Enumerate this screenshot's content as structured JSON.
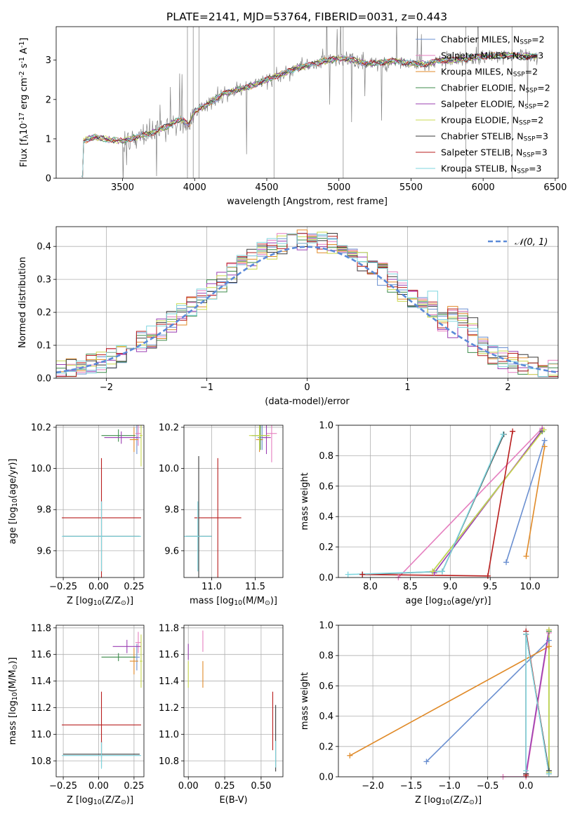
{
  "figure_title": "PLATE=2141, MJD=53764, FIBERID=0031, z=0.443",
  "colors": {
    "Chabrier MILES": "#6a8fd0",
    "Salpeter MILES": "#e57fbf",
    "Kroupa MILES": "#e08a28",
    "Chabrier ELODIE": "#3d8b4b",
    "Salpeter ELODIE": "#9b3fb2",
    "Kroupa ELODIE": "#c9d84f",
    "Chabrier STELIB": "#3a3a3a",
    "Salpeter STELIB": "#b81d1d",
    "Kroupa STELIB": "#7fd6df",
    "data": "#808080",
    "gaussian": "#5b8ad8"
  },
  "chart_data": [
    {
      "type": "line",
      "id": "spectrum",
      "title": "PLATE=2141, MJD=53764, FIBERID=0031, z=0.443",
      "xlabel": "wavelength [Angstrom, rest frame]",
      "ylabel": "Flux [f$_\\lambda$10$^{-17}$ erg cm$^{-2}$ s$^{-1}$ A$^{-1}$]",
      "xlim": [
        3040,
        6520
      ],
      "ylim": [
        0,
        3.85
      ],
      "xticks": [
        3500,
        4000,
        4500,
        5000,
        5500,
        6000,
        6500
      ],
      "yticks": [
        0,
        1,
        2,
        3
      ],
      "grid": false,
      "legend": "top-right",
      "legend_entries": [
        "Chabrier MILES, N$_{SSP}$=2",
        "Salpeter MILES, N$_{SSP}$=3",
        "Kroupa MILES, N$_{SSP}$=2",
        "Chabrier ELODIE, N$_{SSP}$=2",
        "Salpeter ELODIE, N$_{SSP}$=2",
        "Kroupa ELODIE, N$_{SSP}$=2",
        "Chabrier STELIB, N$_{SSP}$=3",
        "Salpeter STELIB, N$_{SSP}$=3",
        "Kroupa STELIB, N$_{SSP}$=3"
      ],
      "continuum": {
        "x": [
          3215,
          3230,
          3300,
          3400,
          3500,
          3600,
          3700,
          3800,
          3900,
          3960,
          4000,
          4100,
          4200,
          4300,
          4400,
          4500,
          4600,
          4700,
          4800,
          4900,
          5000,
          5100,
          5200,
          5300,
          5400,
          5500,
          5600,
          5700,
          5800,
          5900,
          6000,
          6100,
          6200,
          6300,
          6380
        ],
        "y": [
          0.05,
          0.95,
          1.05,
          0.98,
          0.95,
          1.05,
          1.15,
          1.3,
          1.5,
          1.35,
          1.7,
          1.9,
          2.15,
          2.25,
          2.35,
          2.5,
          2.65,
          2.78,
          2.88,
          2.98,
          3.05,
          3.0,
          2.9,
          2.95,
          2.98,
          2.92,
          2.9,
          3.0,
          3.0,
          3.05,
          3.1,
          3.12,
          3.12,
          3.1,
          3.1
        ]
      },
      "data_range": [
        3200,
        6380
      ]
    },
    {
      "type": "histogram",
      "id": "residuals",
      "xlabel": "(data-model)/error",
      "ylabel": "Normed distribution",
      "xlim": [
        -2.5,
        2.5
      ],
      "ylim": [
        0,
        0.46
      ],
      "xticks": [
        -2,
        -1,
        0,
        1,
        2
      ],
      "yticks": [
        0.0,
        0.1,
        0.2,
        0.3,
        0.4
      ],
      "grid": true,
      "legend": "top-right",
      "gaussian_label": "$\\mathcal{N}(0,1)$",
      "bin_width": 0.1
    },
    {
      "type": "scatter",
      "id": "age_vs_Z",
      "xlabel": "Z [log$_{10}$(Z/Z$_\\odot$)]",
      "ylabel": "age  [log$_{10}$(age/yr)]",
      "xlim": [
        -0.3,
        0.32
      ],
      "ylim": [
        9.47,
        10.21
      ],
      "xticks": [
        -0.25,
        0.0,
        0.25
      ],
      "yticks": [
        9.6,
        9.8,
        10.0,
        10.2
      ],
      "grid": true,
      "points": [
        {
          "s": "Chabrier MILES",
          "x": 0.27,
          "y": 10.15,
          "xe": 0.03,
          "ye": 0.08
        },
        {
          "s": "Salpeter MILES",
          "x": 0.28,
          "y": 10.17,
          "xe": 0.02,
          "ye": 0.06
        },
        {
          "s": "Kroupa MILES",
          "x": 0.25,
          "y": 10.14,
          "xe": 0.03,
          "ye": 0.06
        },
        {
          "s": "Chabrier ELODIE",
          "x": 0.14,
          "y": 10.16,
          "xe": 0.12,
          "ye": 0.03
        },
        {
          "s": "Salpeter ELODIE",
          "x": 0.16,
          "y": 10.15,
          "xe": 0.12,
          "ye": 0.03
        },
        {
          "s": "Kroupa ELODIE",
          "x": 0.3,
          "y": 10.16,
          "xe": 0.01,
          "ye": 0.15
        },
        {
          "s": "Chabrier STELIB",
          "x": 0.02,
          "y": 9.67,
          "xe": 0.27,
          "ye": 0.17
        },
        {
          "s": "Salpeter STELIB",
          "x": 0.02,
          "y": 9.76,
          "xe": 0.28,
          "ye": 0.29
        },
        {
          "s": "Kroupa STELIB",
          "x": 0.02,
          "y": 9.67,
          "xe": 0.28,
          "ye": 0.17
        }
      ]
    },
    {
      "type": "scatter",
      "id": "age_vs_mass",
      "xlabel": "mass [log$_{10}$(M/M$_\\odot$)]",
      "xlim": [
        10.68,
        11.82
      ],
      "ylim": [
        9.47,
        10.21
      ],
      "xticks": [
        11.0,
        11.5
      ],
      "yticks": [
        9.6,
        9.8,
        10.0,
        10.2
      ],
      "grid": true,
      "points": [
        {
          "s": "Chabrier MILES",
          "x": 11.58,
          "y": 10.15,
          "xe": 0.05,
          "ye": 0.06
        },
        {
          "s": "Salpeter MILES",
          "x": 11.69,
          "y": 10.17,
          "xe": 0.06,
          "ye": 0.14
        },
        {
          "s": "Kroupa MILES",
          "x": 11.55,
          "y": 10.14,
          "xe": 0.04,
          "ye": 0.06
        },
        {
          "s": "Chabrier ELODIE",
          "x": 11.56,
          "y": 10.16,
          "xe": 0.1,
          "ye": 0.07
        },
        {
          "s": "Salpeter ELODIE",
          "x": 11.63,
          "y": 10.15,
          "xe": 0.05,
          "ye": 0.08
        },
        {
          "s": "Kroupa ELODIE",
          "x": 11.55,
          "y": 10.16,
          "xe": 0.12,
          "ye": 0.07
        },
        {
          "s": "Chabrier STELIB",
          "x": 10.85,
          "y": 9.67,
          "xe": 0.15,
          "ye": 0.39
        },
        {
          "s": "Salpeter STELIB",
          "x": 11.07,
          "y": 9.76,
          "xe": 0.27,
          "ye": 0.29
        },
        {
          "s": "Kroupa STELIB",
          "x": 10.84,
          "y": 9.67,
          "xe": 0.16,
          "ye": 0.17
        }
      ]
    },
    {
      "type": "line",
      "id": "weight_vs_age",
      "xlabel": "age  [log$_{10}$(age/yr)]",
      "ylabel": "mass weight",
      "xlim": [
        7.6,
        10.35
      ],
      "ylim": [
        0,
        1.0
      ],
      "xticks": [
        8.0,
        8.5,
        9.0,
        9.5,
        10.0
      ],
      "yticks": [
        0.0,
        0.2,
        0.4,
        0.6,
        0.8,
        1.0
      ],
      "grid": true,
      "series": [
        {
          "s": "Chabrier MILES",
          "x": [
            9.7,
            10.18
          ],
          "y": [
            0.1,
            0.9
          ]
        },
        {
          "s": "Salpeter MILES",
          "x": [
            8.35,
            10.15
          ],
          "y": [
            0.0,
            0.98
          ]
        },
        {
          "s": "Kroupa MILES",
          "x": [
            9.95,
            10.18
          ],
          "y": [
            0.14,
            0.86
          ]
        },
        {
          "s": "Chabrier ELODIE",
          "x": [
            8.78,
            10.15
          ],
          "y": [
            0.04,
            0.96
          ]
        },
        {
          "s": "Salpeter ELODIE",
          "x": [
            8.8,
            10.15
          ],
          "y": [
            0.03,
            0.97
          ]
        },
        {
          "s": "Kroupa ELODIE",
          "x": [
            8.78,
            10.17
          ],
          "y": [
            0.04,
            0.97
          ]
        },
        {
          "s": "Chabrier STELIB",
          "x": [
            7.9,
            8.9,
            9.67
          ],
          "y": [
            0.02,
            0.04,
            0.94
          ]
        },
        {
          "s": "Salpeter STELIB",
          "x": [
            7.9,
            9.47,
            9.78
          ],
          "y": [
            0.02,
            0.01,
            0.96
          ]
        },
        {
          "s": "Kroupa STELIB",
          "x": [
            7.72,
            8.9,
            9.66
          ],
          "y": [
            0.02,
            0.04,
            0.94
          ]
        }
      ]
    },
    {
      "type": "scatter",
      "id": "mass_vs_Z",
      "xlabel": "Z [log$_{10}$(Z/Z$_\\odot$)]",
      "ylabel": "mass [log$_{10}$(M/M$_\\odot$)]",
      "xlim": [
        -0.3,
        0.32
      ],
      "ylim": [
        10.68,
        11.82
      ],
      "xticks": [
        -0.25,
        0.0,
        0.25
      ],
      "yticks": [
        10.8,
        11.0,
        11.2,
        11.4,
        11.6,
        11.8
      ],
      "grid": true,
      "points": [
        {
          "s": "Chabrier MILES",
          "x": 0.27,
          "y": 11.58,
          "xe": 0.02,
          "ye": 0.1
        },
        {
          "s": "Salpeter MILES",
          "x": 0.28,
          "y": 11.69,
          "xe": 0.02,
          "ye": 0.08
        },
        {
          "s": "Kroupa MILES",
          "x": 0.25,
          "y": 11.55,
          "xe": 0.03,
          "ye": 0.1
        },
        {
          "s": "Chabrier ELODIE",
          "x": 0.14,
          "y": 11.58,
          "xe": 0.12,
          "ye": 0.03
        },
        {
          "s": "Salpeter ELODIE",
          "x": 0.2,
          "y": 11.66,
          "xe": 0.1,
          "ye": 0.05
        },
        {
          "s": "Kroupa ELODIE",
          "x": 0.3,
          "y": 11.55,
          "xe": 0.01,
          "ye": 0.2
        },
        {
          "s": "Chabrier STELIB",
          "x": 0.02,
          "y": 10.85,
          "xe": 0.27,
          "ye": 0.1
        },
        {
          "s": "Salpeter STELIB",
          "x": 0.02,
          "y": 11.07,
          "xe": 0.28,
          "ye": 0.25
        },
        {
          "s": "Kroupa STELIB",
          "x": 0.02,
          "y": 10.84,
          "xe": 0.28,
          "ye": 0.1
        }
      ]
    },
    {
      "type": "scatter",
      "id": "mass_vs_EBV",
      "xlabel": "E(B-V)",
      "xlim": [
        -0.03,
        0.65
      ],
      "ylim": [
        10.68,
        11.82
      ],
      "xticks": [
        0.0,
        0.25,
        0.5
      ],
      "yticks": [
        10.8,
        11.0,
        11.2,
        11.4,
        11.6,
        11.8
      ],
      "grid": true,
      "points": [
        {
          "s": "Salpeter ELODIE",
          "x": 0.0,
          "y": 11.62,
          "xe": 0,
          "ye": 0.06
        },
        {
          "s": "Kroupa ELODIE",
          "x": 0.0,
          "y": 11.45,
          "xe": 0,
          "ye": 0.1
        },
        {
          "s": "Salpeter MILES",
          "x": 0.1,
          "y": 11.7,
          "xe": 0,
          "ye": 0.08
        },
        {
          "s": "Kroupa MILES",
          "x": 0.1,
          "y": 11.45,
          "xe": 0,
          "ye": 0.1
        },
        {
          "s": "Salpeter STELIB",
          "x": 0.58,
          "y": 11.1,
          "xe": 0,
          "ye": 0.22
        },
        {
          "s": "Chabrier STELIB",
          "x": 0.6,
          "y": 10.97,
          "xe": 0,
          "ye": 0.25
        },
        {
          "s": "Kroupa STELIB",
          "x": 0.6,
          "y": 10.85,
          "xe": 0,
          "ye": 0.1
        }
      ]
    },
    {
      "type": "line",
      "id": "weight_vs_Z",
      "xlabel": "Z [log$_{10}$(Z/Z$_\\odot$)]",
      "ylabel": "mass weight",
      "xlim": [
        -2.45,
        0.42
      ],
      "ylim": [
        0,
        1.0
      ],
      "xticks": [
        -2.0,
        -1.5,
        -1.0,
        -0.5,
        0.0
      ],
      "yticks": [
        0.0,
        0.2,
        0.4,
        0.6,
        0.8,
        1.0
      ],
      "grid": true,
      "series": [
        {
          "s": "Chabrier MILES",
          "x": [
            -1.3,
            0.3
          ],
          "y": [
            0.1,
            0.9
          ]
        },
        {
          "s": "Salpeter MILES",
          "x": [
            -0.3,
            0.0,
            0.3
          ],
          "y": [
            0.0,
            0.0,
            0.95
          ]
        },
        {
          "s": "Kroupa MILES",
          "x": [
            -2.3,
            0.3
          ],
          "y": [
            0.14,
            0.86
          ]
        },
        {
          "s": "Chabrier ELODIE",
          "x": [
            0.3,
            0.3
          ],
          "y": [
            0.03,
            0.96
          ]
        },
        {
          "s": "Salpeter ELODIE",
          "x": [
            0.0,
            0.3
          ],
          "y": [
            0.02,
            0.97
          ]
        },
        {
          "s": "Kroupa ELODIE",
          "x": [
            0.3,
            0.3
          ],
          "y": [
            0.03,
            0.97
          ]
        },
        {
          "s": "Chabrier STELIB",
          "x": [
            0.0,
            0.0,
            0.3
          ],
          "y": [
            0.02,
            0.94,
            0.04
          ]
        },
        {
          "s": "Salpeter STELIB",
          "x": [
            0.0,
            0.0,
            0.3
          ],
          "y": [
            0.01,
            0.96,
            0.02
          ]
        },
        {
          "s": "Kroupa STELIB",
          "x": [
            0.0,
            0.0,
            0.3
          ],
          "y": [
            0.04,
            0.94,
            0.02
          ]
        }
      ]
    }
  ]
}
